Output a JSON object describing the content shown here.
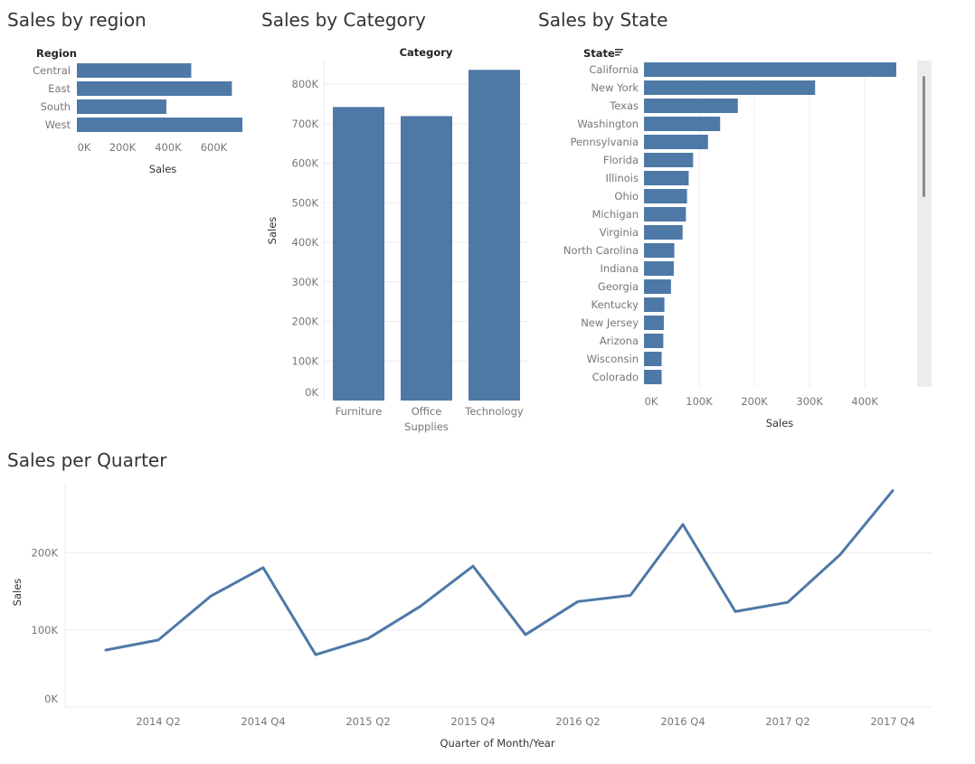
{
  "dashboard": {
    "region_title": "Sales by region",
    "category_title": "Sales by Category",
    "state_title": "Sales by State",
    "quarter_title": "Sales per Quarter"
  },
  "colors": {
    "bar": "#4e79a7",
    "grid": "#ebebeb",
    "axis": "#d4d4d4",
    "scrollbar_track": "#ececec",
    "scrollbar_thumb": "#8a8a8a"
  },
  "chart_data": [
    {
      "type": "bar",
      "orientation": "horizontal",
      "dim_header": "Region",
      "categories": [
        "Central",
        "East",
        "South",
        "West"
      ],
      "values": [
        501000,
        679000,
        392000,
        725000
      ],
      "xlabel": "Sales",
      "xlim": [
        0,
        725000
      ],
      "ticks": [
        0,
        200000,
        400000,
        600000
      ],
      "tick_labels": [
        "0K",
        "200K",
        "400K",
        "600K"
      ]
    },
    {
      "type": "bar",
      "orientation": "vertical",
      "dim_header": "Category",
      "categories": [
        "Furniture",
        "Office Supplies",
        "Technology"
      ],
      "category_lines": [
        [
          "Furniture"
        ],
        [
          "Office",
          "Supplies"
        ],
        [
          "Technology"
        ]
      ],
      "values": [
        742000,
        719000,
        836000
      ],
      "ylabel": "Sales",
      "ylim": [
        0,
        880000
      ],
      "ticks": [
        0,
        100000,
        200000,
        300000,
        400000,
        500000,
        600000,
        700000,
        800000
      ],
      "tick_labels": [
        "0K",
        "100K",
        "200K",
        "300K",
        "400K",
        "500K",
        "600K",
        "700K",
        "800K"
      ],
      "grid": true
    },
    {
      "type": "bar",
      "orientation": "horizontal",
      "dim_header": "State",
      "sort_icon": "sort-descending-icon",
      "categories": [
        "California",
        "New York",
        "Texas",
        "Washington",
        "Pennsylvania",
        "Florida",
        "Illinois",
        "Ohio",
        "Michigan",
        "Virginia",
        "North Carolina",
        "Indiana",
        "Georgia",
        "Kentucky",
        "New Jersey",
        "Arizona",
        "Wisconsin",
        "Colorado"
      ],
      "values": [
        457000,
        310000,
        170000,
        138000,
        116000,
        89000,
        81000,
        78000,
        76000,
        70000,
        55000,
        54000,
        49000,
        37000,
        36000,
        35000,
        32000,
        32000
      ],
      "xlabel": "Sales",
      "xlim": [
        0,
        480000
      ],
      "ticks": [
        0,
        100000,
        200000,
        300000,
        400000
      ],
      "tick_labels": [
        "0K",
        "100K",
        "200K",
        "300K",
        "400K"
      ],
      "grid": true
    },
    {
      "type": "line",
      "x": [
        "2014 Q1",
        "2014 Q2",
        "2014 Q3",
        "2014 Q4",
        "2015 Q1",
        "2015 Q2",
        "2015 Q3",
        "2015 Q4",
        "2016 Q1",
        "2016 Q2",
        "2016 Q3",
        "2016 Q4",
        "2017 Q1",
        "2017 Q2",
        "2017 Q3",
        "2017 Q4"
      ],
      "values": [
        74000,
        87000,
        144000,
        181000,
        68000,
        89000,
        131000,
        183000,
        94000,
        137000,
        145000,
        237000,
        124000,
        136000,
        198000,
        281000
      ],
      "x_tick_labels": [
        "2014 Q2",
        "2014 Q4",
        "2015 Q2",
        "2015 Q4",
        "2016 Q2",
        "2016 Q4",
        "2017 Q2",
        "2017 Q4"
      ],
      "xlabel": "Quarter of Month/Year",
      "ylabel": "Sales",
      "ylim": [
        0,
        290000
      ],
      "ticks": [
        0,
        100000,
        200000
      ],
      "tick_labels": [
        "0K",
        "100K",
        "200K"
      ],
      "grid": true
    }
  ]
}
